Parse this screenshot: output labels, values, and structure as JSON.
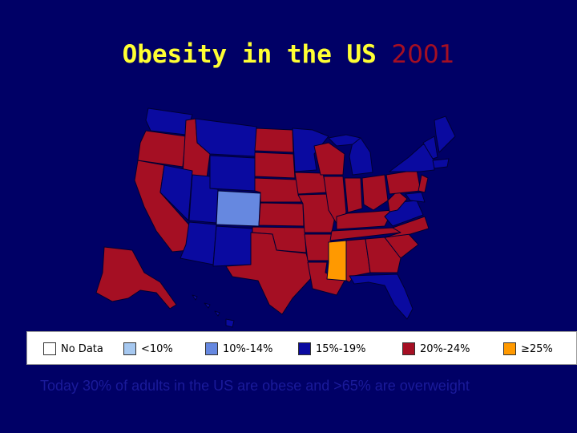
{
  "title": {
    "main": "Obesity in the US",
    "year": "2001"
  },
  "legend": [
    {
      "label": "No Data",
      "color": "#ffffff"
    },
    {
      "label": "<10%",
      "color": "#a6c8f0"
    },
    {
      "label": "10%-14%",
      "color": "#6688e0"
    },
    {
      "label": "15%-19%",
      "color": "#0a0aa0"
    },
    {
      "label": "20%-24%",
      "color": "#a50f23"
    },
    {
      "label": "≥25%",
      "color": "#ff9900"
    }
  ],
  "caption": "Today 30% of adults in the US are obese and >65% are overweight",
  "colors": {
    "background": "#000066",
    "title": "#ffff33",
    "year": "#a50f23",
    "category_10_14": "#6688e0",
    "category_15_19": "#0a0aa0",
    "category_20_24": "#a50f23",
    "category_25_plus": "#ff9900"
  }
}
